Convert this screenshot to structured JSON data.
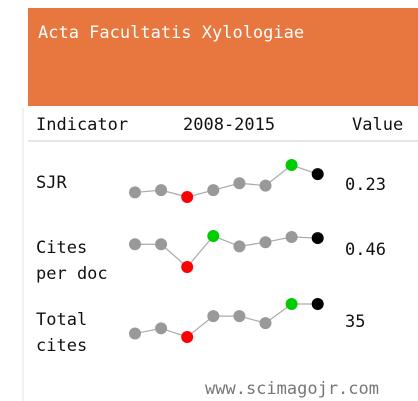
{
  "header": {
    "title": "Acta Facultatis Xylologiae"
  },
  "table": {
    "columns": [
      "Indicator",
      "2008-2015",
      "Value"
    ],
    "rows": [
      {
        "label": [
          "SJR"
        ],
        "points": [
          0.15,
          0.16,
          0.13,
          0.16,
          0.19,
          0.18,
          0.27,
          0.23
        ],
        "value": "0.23"
      },
      {
        "label": [
          "Cites",
          "per doc"
        ],
        "points": [
          0.4,
          0.4,
          0.18,
          0.48,
          0.38,
          0.42,
          0.47,
          0.46
        ],
        "value": "0.46"
      },
      {
        "label": [
          "Total",
          "cites"
        ],
        "points": [
          18,
          21,
          16,
          28,
          28,
          24,
          35,
          35
        ],
        "value": "35"
      }
    ]
  },
  "footer": "www.scimagojr.com",
  "colors": {
    "header": "#e8773f",
    "point": "#999999",
    "min": "#ff0000",
    "max": "#00cc00",
    "last": "#000000",
    "line": "#aaaaaa"
  }
}
